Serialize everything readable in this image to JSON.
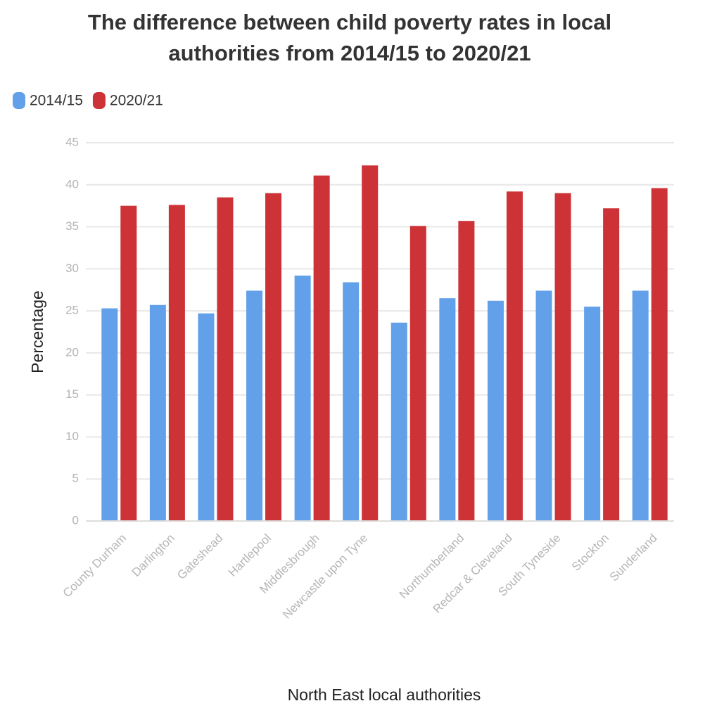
{
  "chart_data": {
    "type": "bar",
    "title_lines": [
      "The difference between child poverty rates in local",
      "authorities from 2014/15 to 2020/21"
    ],
    "x_label": "North East local authorities",
    "y_label": "Percentage",
    "categories": [
      "County Durham",
      "Darlington",
      "Gateshead",
      "Hartlepool",
      "Middlesbrough",
      "Newcastle upon Tyne",
      null,
      "Northumberland",
      "Redcar & Cleveland",
      "South Tyneside",
      "Stockton",
      "Sunderland"
    ],
    "series": [
      {
        "name": "2014/15",
        "color": "#62a0ea",
        "values": [
          25.3,
          25.7,
          24.7,
          27.4,
          29.2,
          28.4,
          23.6,
          26.5,
          26.2,
          27.4,
          25.5,
          27.4
        ]
      },
      {
        "name": "2020/21",
        "color": "#cc3236",
        "values": [
          37.5,
          37.6,
          38.5,
          39.0,
          41.1,
          42.3,
          35.1,
          35.7,
          39.2,
          39.0,
          37.2,
          39.6
        ]
      }
    ],
    "ylim": [
      0,
      45
    ],
    "yticks": [
      0,
      5,
      10,
      15,
      20,
      25,
      30,
      35,
      40,
      45
    ],
    "grid": true,
    "legend": "top-left"
  }
}
